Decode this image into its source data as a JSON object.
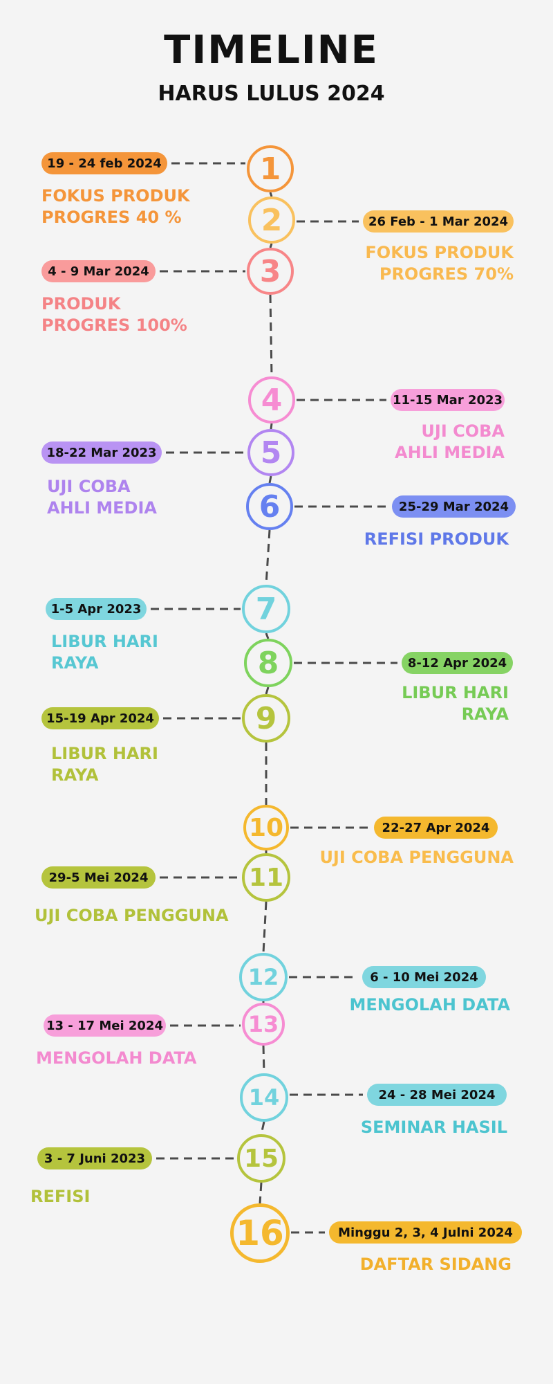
{
  "header": {
    "title": "TIMELINE",
    "subtitle": "HARUS LULUS 2024"
  },
  "milestones": [
    {
      "number": "1",
      "date": "19 - 24 feb 2024",
      "lines": [
        "FOKUS PRODUK",
        "PROGRES 40 %"
      ],
      "side": "left",
      "circle_color": "#F4953A",
      "pill_color": "#F4953A",
      "text_color": "#F4953A"
    },
    {
      "number": "2",
      "date": "26 Feb - 1 Mar 2024",
      "lines": [
        "FOKUS PRODUK",
        "PROGRES 70%"
      ],
      "side": "right",
      "circle_color": "#F9C15E",
      "pill_color": "#F9C15E",
      "text_color": "#F9B94F"
    },
    {
      "number": "3",
      "date": "4 - 9 Mar 2024",
      "lines": [
        "PRODUK",
        "PROGRES 100%"
      ],
      "side": "left",
      "circle_color": "#F78587",
      "pill_color": "#F99B9B",
      "text_color": "#F48386"
    },
    {
      "number": "4",
      "date": "11-15 Mar 2023",
      "lines": [
        "UJI COBA",
        "AHLI MEDIA"
      ],
      "side": "right",
      "circle_color": "#F68CD2",
      "pill_color": "#F79FDA",
      "text_color": "#F38ACF"
    },
    {
      "number": "5",
      "date": "18-22 Mar 2023",
      "lines": [
        "UJI COBA",
        "AHLI MEDIA"
      ],
      "side": "left",
      "circle_color": "#B286F1",
      "pill_color": "#B993F3",
      "text_color": "#AE83EE"
    },
    {
      "number": "6",
      "date": "25-29 Mar 2024",
      "lines": [
        "REFISI PRODUK"
      ],
      "side": "right",
      "circle_color": "#6580F0",
      "pill_color": "#7C8FF2",
      "text_color": "#5F78E8"
    },
    {
      "number": "7",
      "date": "1-5 Apr 2023",
      "lines": [
        "LIBUR HARI",
        "RAYA"
      ],
      "side": "left",
      "circle_color": "#71D2DD",
      "pill_color": "#7FD6DF",
      "text_color": "#56C7D2"
    },
    {
      "number": "8",
      "date": "8-12 Apr 2024",
      "lines": [
        "LIBUR HARI",
        "RAYA"
      ],
      "side": "right",
      "circle_color": "#7ED35D",
      "pill_color": "#86D364",
      "text_color": "#76CB55"
    },
    {
      "number": "9",
      "date": "15-19 Apr 2024",
      "lines": [
        "LIBUR HARI",
        "RAYA"
      ],
      "side": "left",
      "circle_color": "#B5C43D",
      "pill_color": "#B5C43D",
      "text_color": "#B1C13A"
    },
    {
      "number": "10",
      "date": "22-27 Apr 2024",
      "lines": [
        "UJI COBA PENGGUNA"
      ],
      "side": "right",
      "circle_color": "#F4B82E",
      "pill_color": "#F4B82E",
      "text_color": "#F9BC4C"
    },
    {
      "number": "11",
      "date": "29-5 Mei 2024",
      "lines": [
        "UJI COBA PENGGUNA"
      ],
      "side": "left",
      "circle_color": "#B5C43D",
      "pill_color": "#B5C43D",
      "text_color": "#B1C13A"
    },
    {
      "number": "12",
      "date": "6 - 10 Mei 2024",
      "lines": [
        "MENGOLAH DATA"
      ],
      "side": "right",
      "circle_color": "#71D2DD",
      "pill_color": "#7FD6DF",
      "text_color": "#4CC4CF"
    },
    {
      "number": "13",
      "date": "13 - 17 Mei 2024",
      "lines": [
        "MENGOLAH DATA"
      ],
      "side": "left",
      "circle_color": "#F68CD2",
      "pill_color": "#F79FDA",
      "text_color": "#F38ACF"
    },
    {
      "number": "14",
      "date": "24 - 28 Mei 2024",
      "lines": [
        "SEMINAR HASIL"
      ],
      "side": "right",
      "circle_color": "#71D2DD",
      "pill_color": "#7FD6DF",
      "text_color": "#4CC4CF"
    },
    {
      "number": "15",
      "date": "3 - 7 Juni 2023",
      "lines": [
        "REFISI"
      ],
      "side": "left",
      "circle_color": "#B5C43D",
      "pill_color": "#B5C43D",
      "text_color": "#B1C13A"
    },
    {
      "number": "16",
      "date": "Minggu 2, 3, 4 Julni 2024",
      "lines": [
        "DAFTAR SIDANG"
      ],
      "side": "right",
      "circle_color": "#F4B82E",
      "pill_color": "#F4B82E",
      "text_color": "#F2B02C"
    }
  ]
}
